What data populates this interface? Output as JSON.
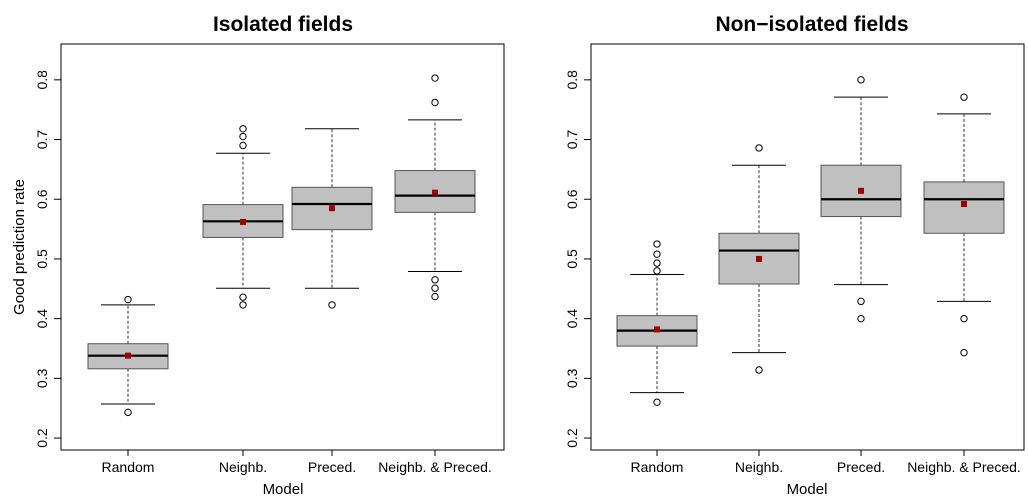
{
  "chart_data": [
    {
      "type": "box",
      "title": "Isolated fields",
      "xlabel": "Model",
      "ylabel": "Good prediction rate",
      "ylim": [
        0.18,
        0.86
      ],
      "yticks": [
        "0.2",
        "0.3",
        "0.4",
        "0.5",
        "0.6",
        "0.7",
        "0.8"
      ],
      "categories": [
        "Random",
        "Neighb.",
        "Preced.",
        "Neighb. & Preced."
      ],
      "boxes": [
        {
          "whisker_low": 0.257,
          "q1": 0.316,
          "median": 0.338,
          "q3": 0.358,
          "whisker_high": 0.423,
          "mean": 0.338,
          "outliers": [
            0.243,
            0.432
          ]
        },
        {
          "whisker_low": 0.451,
          "q1": 0.536,
          "median": 0.563,
          "q3": 0.591,
          "whisker_high": 0.677,
          "mean": 0.562,
          "outliers": [
            0.423,
            0.436,
            0.69,
            0.705,
            0.718
          ]
        },
        {
          "whisker_low": 0.451,
          "q1": 0.549,
          "median": 0.592,
          "q3": 0.62,
          "whisker_high": 0.718,
          "mean": 0.585,
          "outliers": [
            0.423
          ]
        },
        {
          "whisker_low": 0.479,
          "q1": 0.578,
          "median": 0.606,
          "q3": 0.648,
          "whisker_high": 0.733,
          "mean": 0.611,
          "outliers": [
            0.437,
            0.451,
            0.465,
            0.762,
            0.803
          ]
        }
      ]
    },
    {
      "type": "box",
      "title": "Non−isolated fields",
      "xlabel": "Model",
      "ylabel": "",
      "ylim": [
        0.18,
        0.86
      ],
      "yticks": [
        "0.2",
        "0.3",
        "0.4",
        "0.5",
        "0.6",
        "0.7",
        "0.8"
      ],
      "categories": [
        "Random",
        "Neighb.",
        "Preced.",
        "Neighb. & Preced."
      ],
      "boxes": [
        {
          "whisker_low": 0.276,
          "q1": 0.354,
          "median": 0.38,
          "q3": 0.405,
          "whisker_high": 0.474,
          "mean": 0.382,
          "outliers": [
            0.26,
            0.48,
            0.493,
            0.508,
            0.525
          ]
        },
        {
          "whisker_low": 0.343,
          "q1": 0.458,
          "median": 0.514,
          "q3": 0.543,
          "whisker_high": 0.657,
          "mean": 0.5,
          "outliers": [
            0.314,
            0.686
          ]
        },
        {
          "whisker_low": 0.457,
          "q1": 0.571,
          "median": 0.6,
          "q3": 0.657,
          "whisker_high": 0.771,
          "mean": 0.614,
          "outliers": [
            0.4,
            0.429,
            0.8
          ]
        },
        {
          "whisker_low": 0.429,
          "q1": 0.543,
          "median": 0.6,
          "q3": 0.629,
          "whisker_high": 0.743,
          "mean": 0.592,
          "outliers": [
            0.343,
            0.4,
            0.771
          ]
        }
      ]
    }
  ]
}
